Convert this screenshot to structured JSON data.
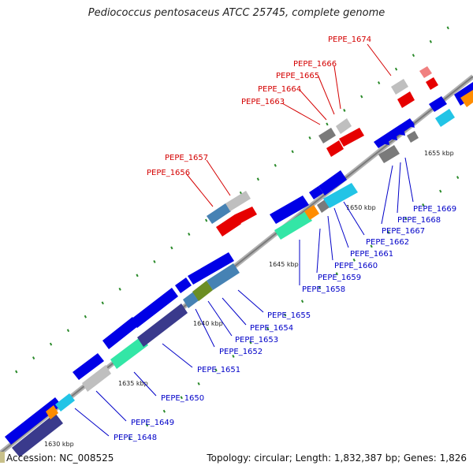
{
  "title": "Pediococcus pentosaceus ATCC 25745, complete genome",
  "footer": {
    "accession": "Accession: NC_008525",
    "summary": "Topology: circular; Length: 1,832,387 bp; Genes: 1,826"
  },
  "colors": {
    "forward_label": "#d40000",
    "reverse_label": "#0000c8",
    "backbone": "#999999"
  },
  "ticks": [
    "1630 kbp",
    "1635 kbp",
    "1640 kbp",
    "1645 kbp",
    "1650 kbp",
    "1655 kbp"
  ],
  "forward_labels": [
    "PEPE_1656",
    "PEPE_1657",
    "PEPE_1663",
    "PEPE_1664",
    "PEPE_1665",
    "PEPE_1666",
    "PEPE_1674"
  ],
  "reverse_labels": [
    "PEPE_1648",
    "PEPE_1649",
    "PEPE_1650",
    "PEPE_1651",
    "PEPE_1652",
    "PEPE_1653",
    "PEPE_1654",
    "PEPE_1655",
    "PEPE_1658",
    "PEPE_1659",
    "PEPE_1660",
    "PEPE_1661",
    "PEPE_1662",
    "PEPE_1667",
    "PEPE_1668",
    "PEPE_1669"
  ]
}
